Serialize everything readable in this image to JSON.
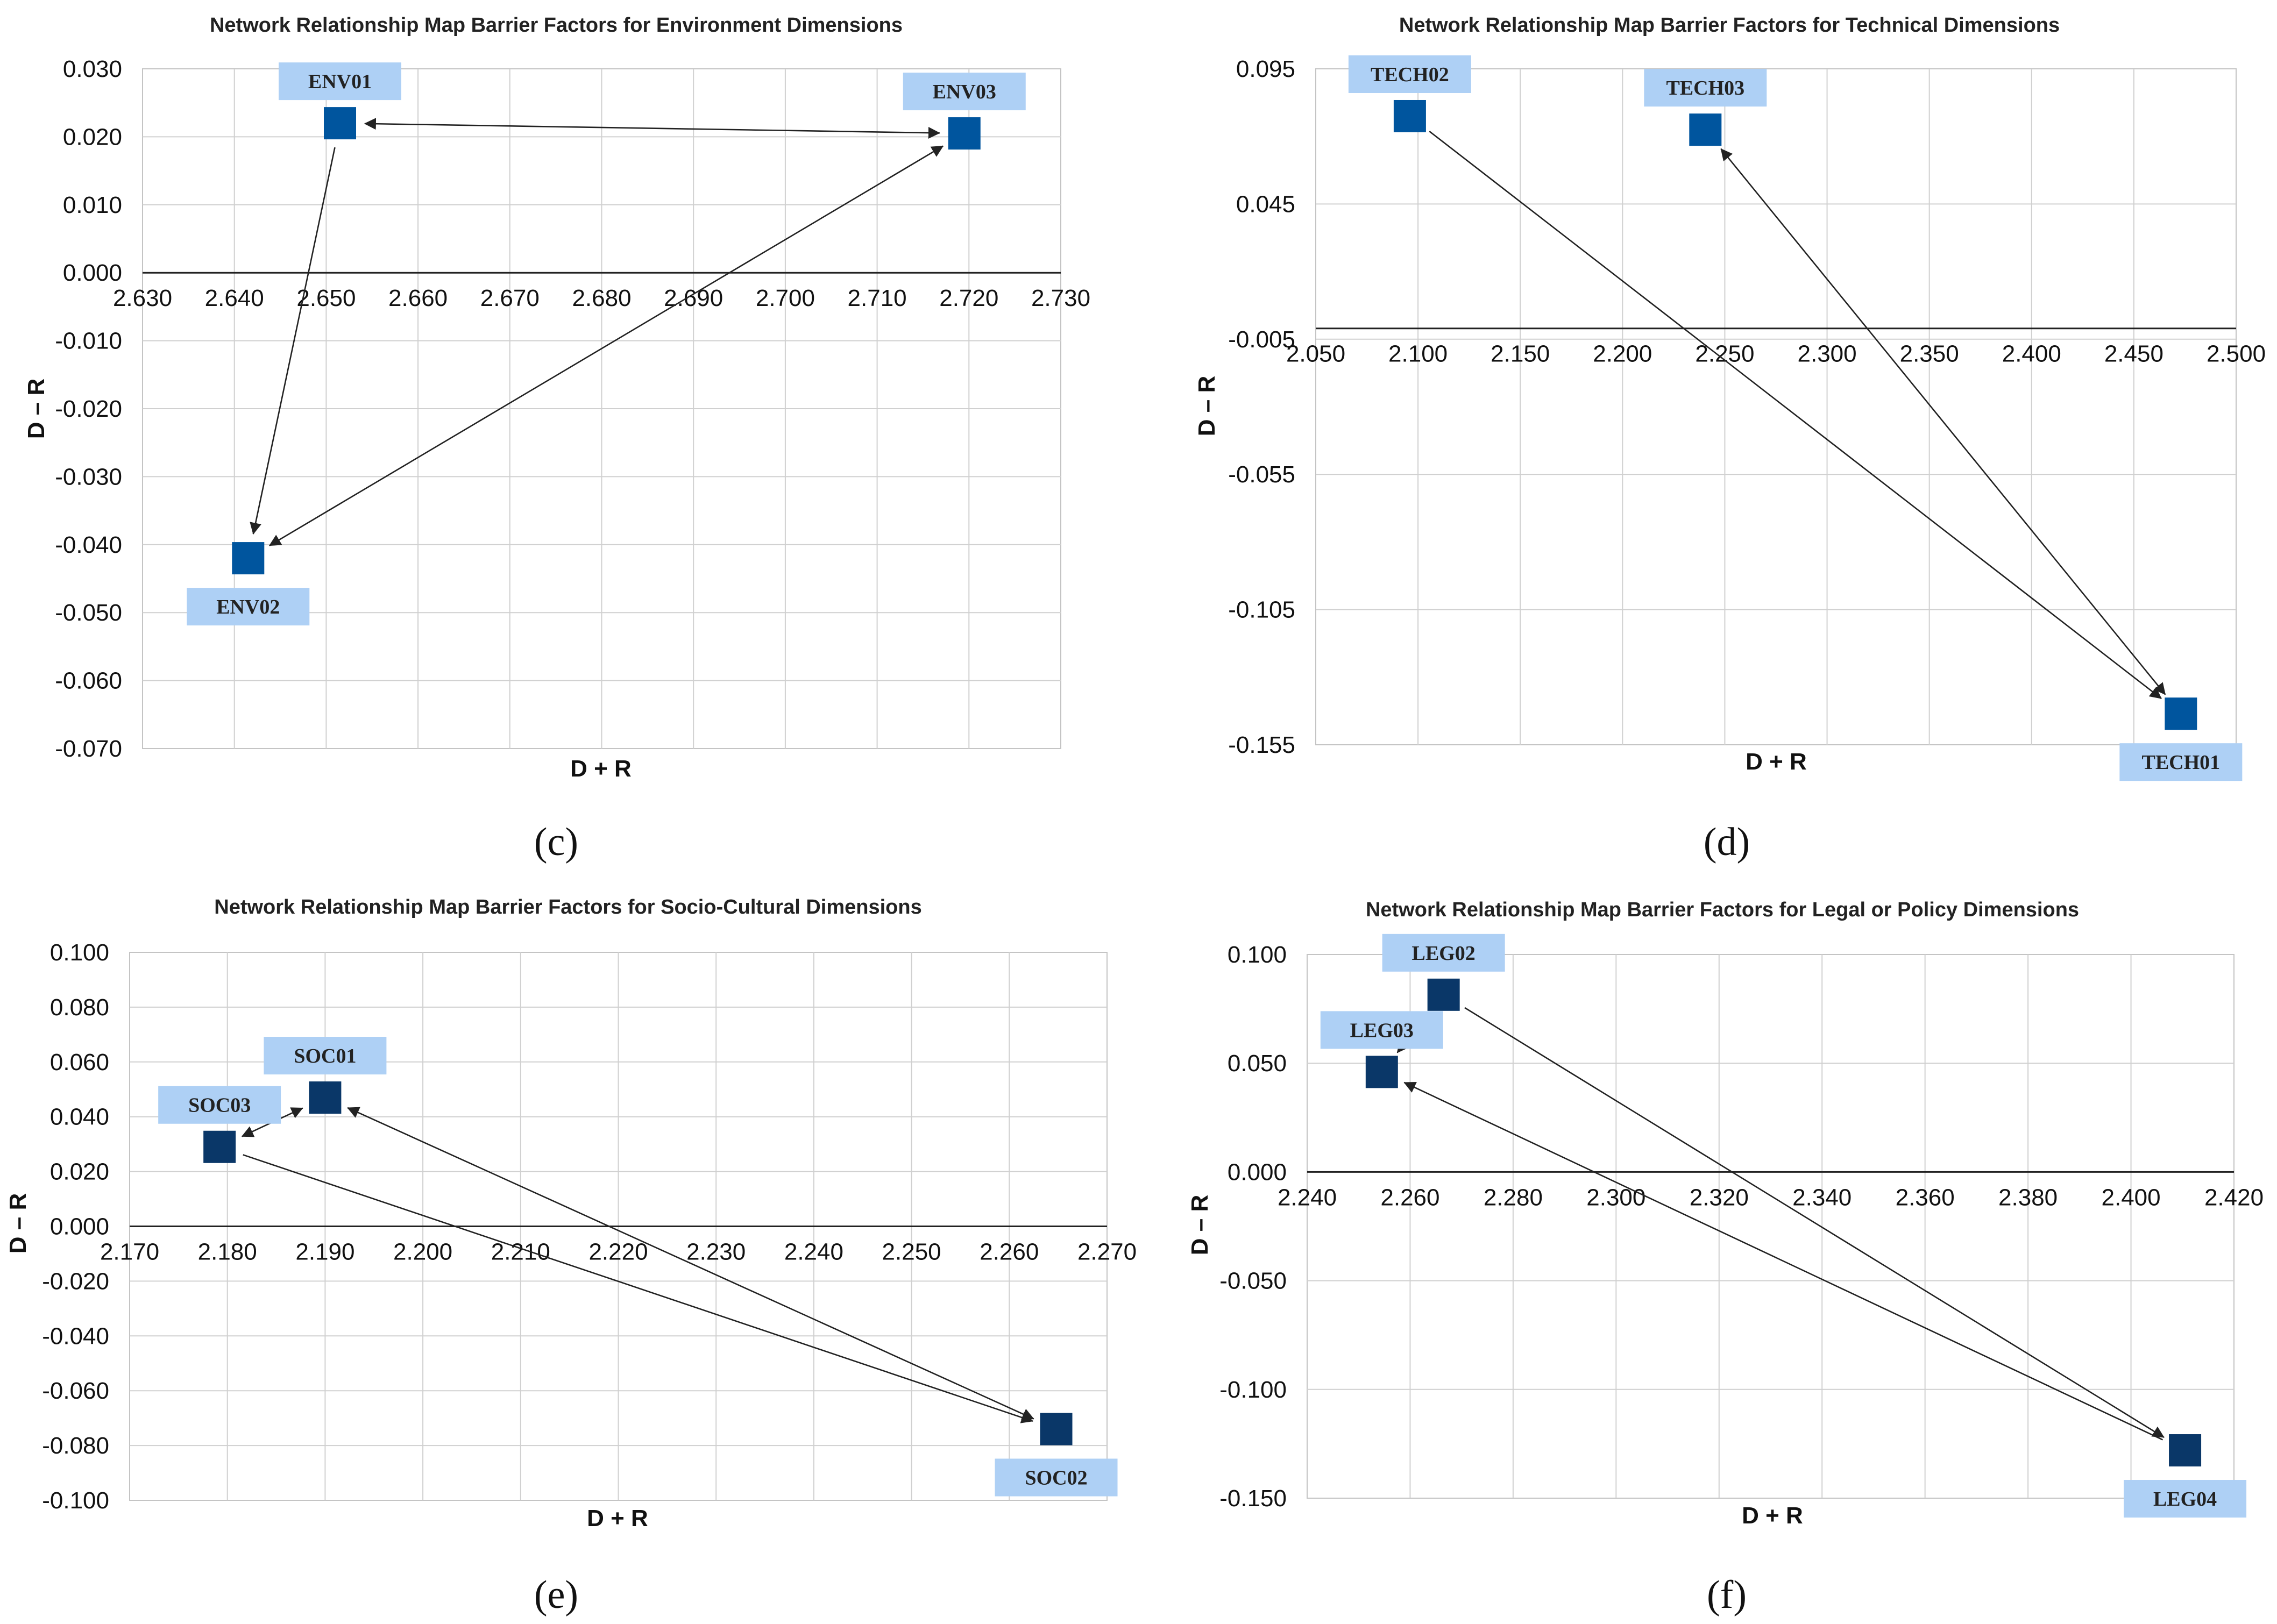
{
  "colors": {
    "grid": "#d0d0d0",
    "axis": "#222222",
    "label_bg": "#aed0f5",
    "arrow": "#222222"
  },
  "chart_data": [
    {
      "id": "c",
      "type": "scatter",
      "caption": "(c)",
      "title": "Network Relationship Map Barrier Factors for Environment Dimensions",
      "xlabel": "D + R",
      "ylabel": "D – R",
      "xlim": [
        2.63,
        2.73
      ],
      "ylim": [
        -0.07,
        0.03
      ],
      "xticks": [
        "2.630",
        "2.640",
        "2.650",
        "2.660",
        "2.670",
        "2.680",
        "2.690",
        "2.700",
        "2.710",
        "2.720",
        "2.730"
      ],
      "yticks": [
        "0.030",
        "0.020",
        "0.010",
        "0.000",
        "-0.010",
        "-0.020",
        "-0.030",
        "-0.040",
        "-0.050",
        "-0.060",
        "-0.070"
      ],
      "marker_color": "#00559e",
      "points": [
        {
          "label": "ENV01",
          "x": 2.6515,
          "y": 0.022,
          "label_pos": "above"
        },
        {
          "label": "ENV02",
          "x": 2.6415,
          "y": -0.042,
          "label_pos": "below"
        },
        {
          "label": "ENV03",
          "x": 2.7195,
          "y": 0.0205,
          "label_pos": "above"
        }
      ],
      "arrows": [
        {
          "from": "ENV01",
          "to": "ENV03",
          "both": true
        },
        {
          "from": "ENV01",
          "to": "ENV02",
          "both": false
        },
        {
          "from": "ENV03",
          "to": "ENV02",
          "both": true
        }
      ]
    },
    {
      "id": "d",
      "type": "scatter",
      "caption": "(d)",
      "title": "Network Relationship Map Barrier Factors for Technical Dimensions",
      "xlabel": "D + R",
      "ylabel": "D – R",
      "xlim": [
        2.05,
        2.5
      ],
      "ylim": [
        -0.155,
        0.095
      ],
      "xticks": [
        "2.050",
        "2.100",
        "2.150",
        "2.200",
        "2.250",
        "2.300",
        "2.350",
        "2.400",
        "2.450",
        "2.500"
      ],
      "yticks": [
        "0.095",
        "0.045",
        "-0.005",
        "-0.055",
        "-0.105",
        "-0.155"
      ],
      "marker_color": "#00559e",
      "points": [
        {
          "label": "TECH01",
          "x": 2.473,
          "y": -0.1435,
          "label_pos": "below"
        },
        {
          "label": "TECH02",
          "x": 2.096,
          "y": 0.0775,
          "label_pos": "above"
        },
        {
          "label": "TECH03",
          "x": 2.2405,
          "y": 0.0725,
          "label_pos": "above"
        }
      ],
      "arrows": [
        {
          "from": "TECH02",
          "to": "TECH01",
          "both": false
        },
        {
          "from": "TECH03",
          "to": "TECH01",
          "both": true
        }
      ]
    },
    {
      "id": "e",
      "type": "scatter",
      "caption": "(e)",
      "title": "Network Relationship Map Barrier Factors for Socio-Cultural Dimensions",
      "xlabel": "D + R",
      "ylabel": "D – R",
      "xlim": [
        2.17,
        2.27
      ],
      "ylim": [
        -0.1,
        0.1
      ],
      "xticks": [
        "2.170",
        "2.180",
        "2.190",
        "2.200",
        "2.210",
        "2.220",
        "2.230",
        "2.240",
        "2.250",
        "2.260",
        "2.270"
      ],
      "yticks": [
        "0.100",
        "0.080",
        "0.060",
        "0.040",
        "0.020",
        "0.000",
        "-0.020",
        "-0.040",
        "-0.060",
        "-0.080",
        "-0.100"
      ],
      "marker_color": "#0a3768",
      "points": [
        {
          "label": "SOC01",
          "x": 2.19,
          "y": 0.047,
          "label_pos": "above"
        },
        {
          "label": "SOC02",
          "x": 2.2648,
          "y": -0.074,
          "label_pos": "below"
        },
        {
          "label": "SOC03",
          "x": 2.1792,
          "y": 0.029,
          "label_pos": "above"
        }
      ],
      "arrows": [
        {
          "from": "SOC03",
          "to": "SOC01",
          "both": true
        },
        {
          "from": "SOC01",
          "to": "SOC02",
          "both": true
        },
        {
          "from": "SOC03",
          "to": "SOC02",
          "both": false
        }
      ]
    },
    {
      "id": "f",
      "type": "scatter",
      "caption": "(f)",
      "title": "Network Relationship Map Barrier Factors for Legal or Policy Dimensions",
      "xlabel": "D + R",
      "ylabel": "D – R",
      "xlim": [
        2.24,
        2.42
      ],
      "ylim": [
        -0.15,
        0.1
      ],
      "xticks": [
        "2.240",
        "2.260",
        "2.280",
        "2.300",
        "2.320",
        "2.340",
        "2.360",
        "2.380",
        "2.400",
        "2.420"
      ],
      "yticks": [
        "0.100",
        "0.050",
        "0.000",
        "-0.050",
        "-0.100",
        "-0.150"
      ],
      "marker_color": "#0a3768",
      "points": [
        {
          "label": "LEG02",
          "x": 2.2665,
          "y": 0.0815,
          "label_pos": "above"
        },
        {
          "label": "LEG03",
          "x": 2.2545,
          "y": 0.046,
          "label_pos": "above"
        },
        {
          "label": "LEG04",
          "x": 2.4105,
          "y": -0.128,
          "label_pos": "below"
        }
      ],
      "arrows": [
        {
          "from": "LEG02",
          "to": "LEG03",
          "both": false
        },
        {
          "from": "LEG02",
          "to": "LEG04",
          "both": false
        },
        {
          "from": "LEG04",
          "to": "LEG03",
          "both": false
        }
      ]
    }
  ]
}
